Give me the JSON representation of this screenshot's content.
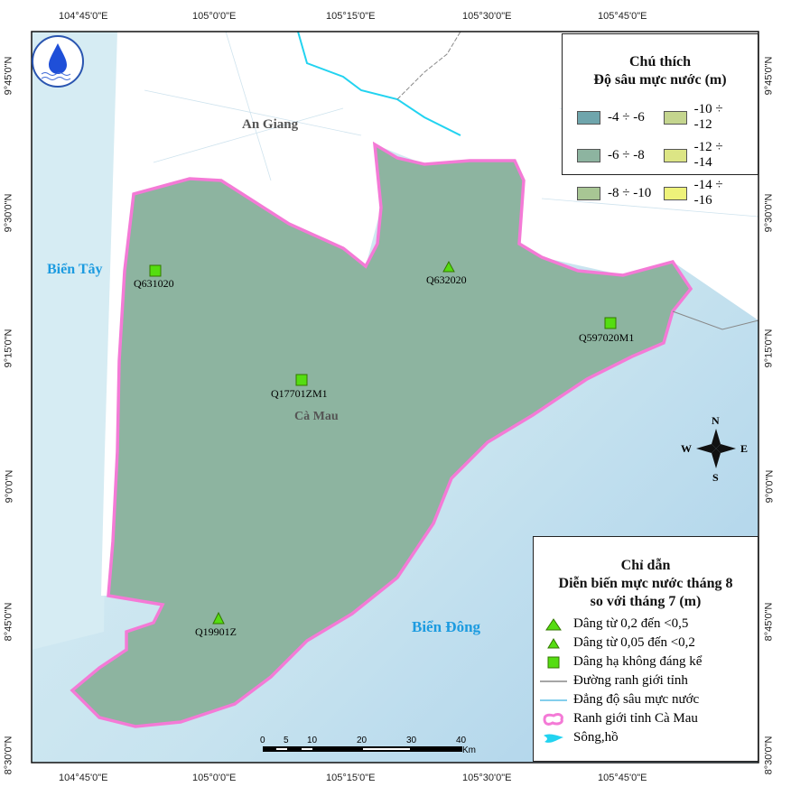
{
  "map": {
    "lon_ticks": [
      "104°45'0\"E",
      "105°0'0\"E",
      "105°15'0\"E",
      "105°30'0\"E",
      "105°45'0\"E"
    ],
    "lat_ticks": [
      "9°45'0\"N",
      "9°30'0\"N",
      "9°15'0\"N",
      "9°0'0\"N",
      "8°45'0\"N",
      "8°30'0\"N"
    ],
    "labels": {
      "an_giang": "An Giang",
      "bien_tay": "Biển Tây",
      "ca_mau": "Cà Mau",
      "bien_dong": "Biển Đông"
    },
    "stations": [
      {
        "id": "Q631020",
        "symbol": "square"
      },
      {
        "id": "Q632020",
        "symbol": "triangle-small"
      },
      {
        "id": "Q597020M1",
        "symbol": "square"
      },
      {
        "id": "Q17701ZM1",
        "symbol": "square"
      },
      {
        "id": "Q19901Z",
        "symbol": "triangle-small"
      }
    ],
    "compass": {
      "n": "N",
      "s": "S",
      "e": "E",
      "w": "W"
    },
    "scale": {
      "ticks": [
        "0",
        "5",
        "10",
        "20",
        "30",
        "40"
      ],
      "unit": "Km"
    },
    "logo_text": "TRUNG TÂM CẢNH BÁO VÀ DỰ BÁO TÀI NGUYÊN NƯỚC · CEWAFO"
  },
  "depth_legend": {
    "title1": "Chú thích",
    "title2": "Độ sâu mực nước (m)",
    "classes": [
      {
        "label": "-4 ÷ -6",
        "color": "#6fa5ac"
      },
      {
        "label": "-10 ÷ -12",
        "color": "#c4d58e"
      },
      {
        "label": "-6 ÷ -8",
        "color": "#8db4a0"
      },
      {
        "label": "-12 ÷ -14",
        "color": "#dce585"
      },
      {
        "label": "-8 ÷ -10",
        "color": "#a8c694"
      },
      {
        "label": "-14 ÷ -16",
        "color": "#eef27a"
      }
    ]
  },
  "guide_legend": {
    "title1": "Chỉ dẫn",
    "title2": "Diễn biến mực nước tháng 8",
    "title3": "so với tháng 7 (m)",
    "items": [
      {
        "label": "Dâng từ 0,2 đến <0,5",
        "icon": "triangle-large"
      },
      {
        "label": "Dâng từ 0,05 đến <0,2",
        "icon": "triangle-small"
      },
      {
        "label": "Dâng hạ không đáng kể",
        "icon": "square"
      },
      {
        "label": "Đường ranh giới tỉnh",
        "icon": "gray-line"
      },
      {
        "label": "Đẳng độ sâu mực nước",
        "icon": "blue-line"
      },
      {
        "label": "Ranh giới tỉnh Cà Mau",
        "icon": "pink-outline"
      },
      {
        "label": "Sông,hồ",
        "icon": "cyan-river"
      }
    ]
  },
  "colors": {
    "marker": "#55dd11",
    "boundary": "#f47ad6",
    "river": "#22d3f0",
    "isoline": "#3ab0e0",
    "sea": "#cfe9f2"
  }
}
